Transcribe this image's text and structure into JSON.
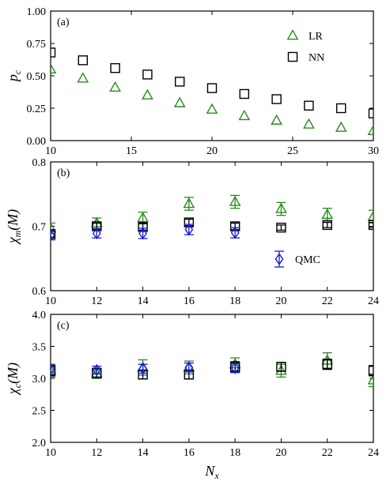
{
  "colors": {
    "LR": "#2a8a1e",
    "NN": "#000000",
    "QMC": "#1a1ad6",
    "axis": "#000000"
  },
  "chart_data": [
    {
      "type": "scatter",
      "panel_label": "(a)",
      "ylabel_base": "p",
      "ylabel_sub": "c",
      "xlabel": "",
      "xlim": [
        10,
        30
      ],
      "ylim": [
        0.0,
        1.0
      ],
      "xticks": [
        10,
        15,
        20,
        25,
        30
      ],
      "xtick_labels": [
        "10",
        "15",
        "20",
        "25",
        "30"
      ],
      "yticks": [
        0.0,
        0.25,
        0.5,
        0.75,
        1.0
      ],
      "ytick_labels": [
        "0.00",
        "0.25",
        "0.50",
        "0.75",
        "1.00"
      ],
      "grid": false,
      "legend_placement": "top-right",
      "series": [
        {
          "name": "LR",
          "marker": "triangle",
          "color_key": "LR",
          "x": [
            10,
            12,
            14,
            16,
            18,
            20,
            22,
            24,
            26,
            28,
            30
          ],
          "y": [
            0.55,
            0.48,
            0.41,
            0.35,
            0.29,
            0.24,
            0.19,
            0.155,
            0.125,
            0.1,
            0.075
          ]
        },
        {
          "name": "NN",
          "marker": "square",
          "color_key": "NN",
          "x": [
            10,
            12,
            14,
            16,
            18,
            20,
            22,
            24,
            26,
            28,
            30
          ],
          "y": [
            0.68,
            0.62,
            0.56,
            0.51,
            0.455,
            0.405,
            0.36,
            0.32,
            0.27,
            0.25,
            0.21
          ]
        }
      ]
    },
    {
      "type": "scatter",
      "panel_label": "(b)",
      "ylabel_base": "χ",
      "ylabel_sub": "m",
      "ylabel_suffix": "(M)",
      "xlabel": "",
      "xlim": [
        10,
        24
      ],
      "ylim": [
        0.6,
        0.8
      ],
      "xticks": [
        10,
        12,
        14,
        16,
        18,
        20,
        22,
        24
      ],
      "xtick_labels": [
        "10",
        "12",
        "14",
        "16",
        "18",
        "20",
        "22",
        "24"
      ],
      "yticks": [
        0.6,
        0.7,
        0.8
      ],
      "ytick_labels": [
        "0.6",
        "0.7",
        "0.8"
      ],
      "grid": false,
      "legend_placement": "bottom-right",
      "series": [
        {
          "name": "",
          "marker": "triangle",
          "color_key": "LR",
          "x": [
            10,
            12,
            14,
            16,
            18,
            20,
            22,
            24
          ],
          "y": [
            0.697,
            0.705,
            0.713,
            0.735,
            0.738,
            0.727,
            0.718,
            0.715
          ],
          "err": [
            0.008,
            0.008,
            0.009,
            0.01,
            0.01,
            0.01,
            0.01,
            0.01
          ]
        },
        {
          "name": "",
          "marker": "square",
          "color_key": "NN",
          "x": [
            10,
            12,
            14,
            16,
            18,
            20,
            22,
            24
          ],
          "y": [
            0.688,
            0.7,
            0.699,
            0.706,
            0.7,
            0.698,
            0.702,
            0.702
          ],
          "err": [
            0.005,
            0.005,
            0.005,
            0.005,
            0.005,
            0.004,
            0.004,
            0.004
          ]
        },
        {
          "name": "QMC",
          "marker": "diamond",
          "color_key": "QMC",
          "x": [
            10,
            12,
            14,
            16,
            18
          ],
          "y": [
            0.686,
            0.689,
            0.689,
            0.695,
            0.69
          ],
          "err": [
            0.007,
            0.007,
            0.008,
            0.008,
            0.008
          ]
        }
      ]
    },
    {
      "type": "scatter",
      "panel_label": "(c)",
      "ylabel_base": "χ",
      "ylabel_sub": "c",
      "ylabel_suffix": "(M)",
      "xlabel_base": "N",
      "xlabel_sub": "x",
      "xlim": [
        10,
        24
      ],
      "ylim": [
        2.0,
        4.0
      ],
      "xticks": [
        10,
        12,
        14,
        16,
        18,
        20,
        22,
        24
      ],
      "xtick_labels": [
        "10",
        "12",
        "14",
        "16",
        "18",
        "20",
        "22",
        "24"
      ],
      "yticks": [
        2.0,
        2.5,
        3.0,
        3.5,
        4.0
      ],
      "ytick_labels": [
        "2.0",
        "2.5",
        "3.0",
        "3.5",
        "4.0"
      ],
      "grid": false,
      "legend_placement": "none",
      "series": [
        {
          "name": "",
          "marker": "triangle",
          "color_key": "LR",
          "x": [
            10,
            12,
            14,
            16,
            18,
            20,
            22,
            24
          ],
          "y": [
            3.12,
            3.08,
            3.17,
            3.17,
            3.22,
            3.12,
            3.28,
            2.97
          ],
          "err": [
            0.1,
            0.08,
            0.12,
            0.1,
            0.1,
            0.1,
            0.12,
            0.1
          ]
        },
        {
          "name": "",
          "marker": "square",
          "color_key": "NN",
          "x": [
            10,
            12,
            14,
            16,
            18,
            20,
            22,
            24
          ],
          "y": [
            3.12,
            3.08,
            3.06,
            3.06,
            3.18,
            3.18,
            3.22,
            3.12
          ],
          "err": [
            0.08,
            0.07,
            0.07,
            0.07,
            0.08,
            0.07,
            0.08,
            0.08
          ]
        },
        {
          "name": "",
          "marker": "diamond",
          "color_key": "QMC",
          "x": [
            10,
            12,
            14,
            16,
            18
          ],
          "y": [
            3.15,
            3.13,
            3.15,
            3.17,
            3.16
          ],
          "err": [
            0.06,
            0.06,
            0.07,
            0.07,
            0.07
          ]
        }
      ]
    }
  ]
}
